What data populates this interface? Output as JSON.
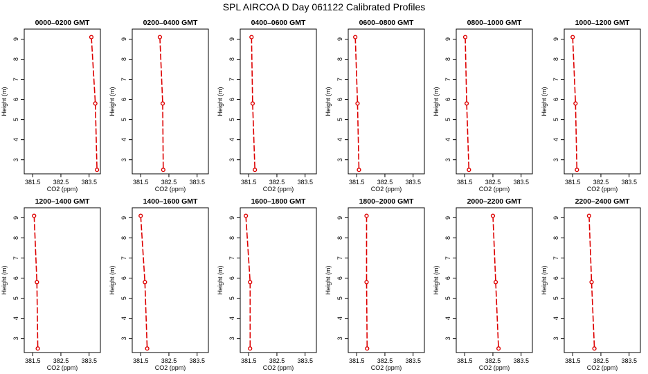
{
  "page_title": "SPL AIRCOA D  Day 061122  Calibrated Profiles",
  "series_color": "#dd0000",
  "chart_data": [
    {
      "type": "line",
      "title": "0000–0200 GMT",
      "xlabel": "CO2 (ppm)",
      "ylabel": "Height (m)",
      "xlim": [
        381.2,
        383.9
      ],
      "ylim": [
        2.3,
        9.5
      ],
      "xticks": [
        381.5,
        382.5,
        383.5
      ],
      "yticks": [
        3,
        4,
        5,
        6,
        7,
        8,
        9
      ],
      "x": [
        383.58,
        383.72,
        383.78
      ],
      "y": [
        9.1,
        5.8,
        2.5
      ],
      "grid": false
    },
    {
      "type": "line",
      "title": "0200–0400 GMT",
      "xlabel": "CO2 (ppm)",
      "ylabel": "Height (m)",
      "xlim": [
        381.2,
        383.9
      ],
      "ylim": [
        2.3,
        9.5
      ],
      "xticks": [
        381.5,
        382.5,
        383.5
      ],
      "yticks": [
        3,
        4,
        5,
        6,
        7,
        8,
        9
      ],
      "x": [
        382.18,
        382.28,
        382.3
      ],
      "y": [
        9.1,
        5.8,
        2.5
      ],
      "grid": false
    },
    {
      "type": "line",
      "title": "0400–0600 GMT",
      "xlabel": "CO2 (ppm)",
      "ylabel": "Height (m)",
      "xlim": [
        381.2,
        383.9
      ],
      "ylim": [
        2.3,
        9.5
      ],
      "xticks": [
        381.5,
        382.5,
        383.5
      ],
      "yticks": [
        3,
        4,
        5,
        6,
        7,
        8,
        9
      ],
      "x": [
        381.6,
        381.64,
        381.72
      ],
      "y": [
        9.1,
        5.8,
        2.5
      ],
      "grid": false
    },
    {
      "type": "line",
      "title": "0600–0800 GMT",
      "xlabel": "CO2 (ppm)",
      "ylabel": "Height (m)",
      "xlim": [
        381.2,
        383.9
      ],
      "ylim": [
        2.3,
        9.5
      ],
      "xticks": [
        381.5,
        382.5,
        383.5
      ],
      "yticks": [
        3,
        4,
        5,
        6,
        7,
        8,
        9
      ],
      "x": [
        381.45,
        381.53,
        381.58
      ],
      "y": [
        9.1,
        5.8,
        2.5
      ],
      "grid": false
    },
    {
      "type": "line",
      "title": "0800–1000 GMT",
      "xlabel": "CO2 (ppm)",
      "ylabel": "Height (m)",
      "xlim": [
        381.2,
        383.9
      ],
      "ylim": [
        2.3,
        9.5
      ],
      "xticks": [
        381.5,
        382.5,
        383.5
      ],
      "yticks": [
        3,
        4,
        5,
        6,
        7,
        8,
        9
      ],
      "x": [
        381.52,
        381.57,
        381.65
      ],
      "y": [
        9.1,
        5.8,
        2.5
      ],
      "grid": false
    },
    {
      "type": "line",
      "title": "1000–1200 GMT",
      "xlabel": "CO2 (ppm)",
      "ylabel": "Height (m)",
      "xlim": [
        381.2,
        383.9
      ],
      "ylim": [
        2.3,
        9.5
      ],
      "xticks": [
        381.5,
        382.5,
        383.5
      ],
      "yticks": [
        3,
        4,
        5,
        6,
        7,
        8,
        9
      ],
      "x": [
        381.5,
        381.6,
        381.65
      ],
      "y": [
        9.1,
        5.8,
        2.5
      ],
      "grid": false
    },
    {
      "type": "line",
      "title": "1200–1400 GMT",
      "xlabel": "CO2 (ppm)",
      "ylabel": "Height (m)",
      "xlim": [
        381.2,
        383.9
      ],
      "ylim": [
        2.3,
        9.5
      ],
      "xticks": [
        381.5,
        382.5,
        383.5
      ],
      "yticks": [
        3,
        4,
        5,
        6,
        7,
        8,
        9
      ],
      "x": [
        381.55,
        381.65,
        381.68
      ],
      "y": [
        9.1,
        5.8,
        2.5
      ],
      "grid": false
    },
    {
      "type": "line",
      "title": "1400–1600 GMT",
      "xlabel": "CO2 (ppm)",
      "ylabel": "Height (m)",
      "xlim": [
        381.2,
        383.9
      ],
      "ylim": [
        2.3,
        9.5
      ],
      "xticks": [
        381.5,
        382.5,
        383.5
      ],
      "yticks": [
        3,
        4,
        5,
        6,
        7,
        8,
        9
      ],
      "x": [
        381.5,
        381.65,
        381.73
      ],
      "y": [
        9.1,
        5.8,
        2.5
      ],
      "grid": false
    },
    {
      "type": "line",
      "title": "1600–1800 GMT",
      "xlabel": "CO2 (ppm)",
      "ylabel": "Height (m)",
      "xlim": [
        381.2,
        383.9
      ],
      "ylim": [
        2.3,
        9.5
      ],
      "xticks": [
        381.5,
        382.5,
        383.5
      ],
      "yticks": [
        3,
        4,
        5,
        6,
        7,
        8,
        9
      ],
      "x": [
        381.4,
        381.55,
        381.55
      ],
      "y": [
        9.1,
        5.8,
        2.5
      ],
      "grid": false
    },
    {
      "type": "line",
      "title": "1800–2000 GMT",
      "xlabel": "CO2 (ppm)",
      "ylabel": "Height (m)",
      "xlim": [
        381.2,
        383.9
      ],
      "ylim": [
        2.3,
        9.5
      ],
      "xticks": [
        381.5,
        382.5,
        383.5
      ],
      "yticks": [
        3,
        4,
        5,
        6,
        7,
        8,
        9
      ],
      "x": [
        381.85,
        381.85,
        381.87
      ],
      "y": [
        9.1,
        5.8,
        2.5
      ],
      "grid": false
    },
    {
      "type": "line",
      "title": "2000–2200 GMT",
      "xlabel": "CO2 (ppm)",
      "ylabel": "Height (m)",
      "xlim": [
        381.2,
        383.9
      ],
      "ylim": [
        2.3,
        9.5
      ],
      "xticks": [
        381.5,
        382.5,
        383.5
      ],
      "yticks": [
        3,
        4,
        5,
        6,
        7,
        8,
        9
      ],
      "x": [
        382.5,
        382.6,
        382.7
      ],
      "y": [
        9.1,
        5.8,
        2.5
      ],
      "grid": false
    },
    {
      "type": "line",
      "title": "2200–2400 GMT",
      "xlabel": "CO2 (ppm)",
      "ylabel": "Height (m)",
      "xlim": [
        381.2,
        383.9
      ],
      "ylim": [
        2.3,
        9.5
      ],
      "xticks": [
        381.5,
        382.5,
        383.5
      ],
      "yticks": [
        3,
        4,
        5,
        6,
        7,
        8,
        9
      ],
      "x": [
        382.08,
        382.17,
        382.27
      ],
      "y": [
        9.1,
        5.8,
        2.5
      ],
      "grid": false
    }
  ]
}
